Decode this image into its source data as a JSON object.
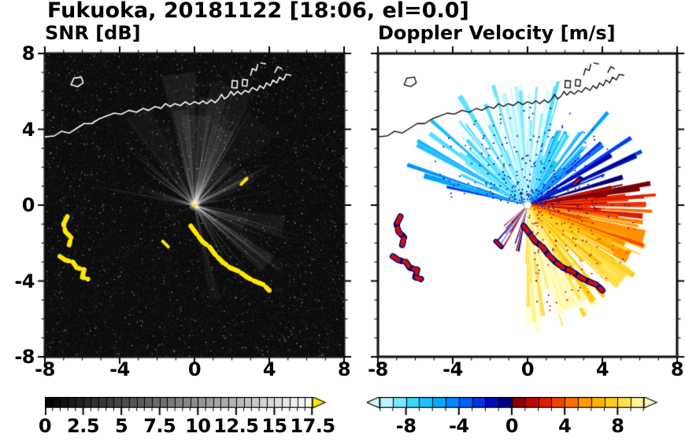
{
  "title": "Fukuoka, 20181122 [18:06, el=0.0]",
  "panels": {
    "snr": {
      "title": "SNR [dB]"
    },
    "doppler": {
      "title": "Doppler Velocity [m/s]"
    }
  },
  "axes": {
    "range": [
      -8,
      8
    ],
    "tick_values": [
      -8,
      -4,
      0,
      4,
      8
    ],
    "xtick_labels": [
      "-8",
      "-4",
      "0",
      "4",
      "8"
    ],
    "ytick_labels": [
      "8",
      "4",
      "0",
      "-4",
      "-8"
    ]
  },
  "colorbars": {
    "snr": {
      "min": 0,
      "max": 17.5,
      "tick_values": [
        0,
        2.5,
        5,
        7.5,
        10,
        12.5,
        15,
        17.5
      ],
      "tick_labels": [
        "0",
        "2.5",
        "5",
        "7.5",
        "10",
        "12.5",
        "15",
        "17.5"
      ],
      "scale": "grayscale-black-to-white",
      "overflow_color": "#ffe800"
    },
    "doppler": {
      "min": -10,
      "max": 10,
      "tick_values": [
        -8,
        -4,
        0,
        4,
        8
      ],
      "tick_labels": [
        "-8",
        "-4",
        "0",
        "4",
        "8"
      ]
    }
  },
  "chart_data": [
    {
      "type": "heatmap",
      "panel": "left",
      "title": "SNR [dB]",
      "x_range": [
        -8,
        8
      ],
      "y_range": [
        -8,
        8
      ],
      "xticks": [
        -8,
        -4,
        0,
        4,
        8
      ],
      "yticks": [
        -8,
        -4,
        0,
        4,
        8
      ],
      "colorbar": {
        "min": 0,
        "max": 17.5,
        "ticks": [
          0,
          2.5,
          5,
          7.5,
          10,
          12.5,
          15,
          17.5
        ],
        "scale": "grayscale",
        "overflow_arrow_color": "#ffe800"
      },
      "content": {
        "background": "dark noise floor near 0 dB",
        "radar_location": [
          0,
          0
        ],
        "radial_streaks": "faint gray rays emanating from the radar at many azimuths, densest toward N-NW and SE",
        "saturated_clutter": "yellow (>17.5 dB) echoes along terrain arcs SW of radar and a broken chain running SE of radar"
      }
    },
    {
      "type": "heatmap",
      "panel": "right",
      "title": "Doppler Velocity [m/s]",
      "x_range": [
        -8,
        8
      ],
      "y_range": [
        -8,
        8
      ],
      "xticks": [
        -8,
        -4,
        0,
        4,
        8
      ],
      "yticks": [
        -8,
        -4,
        0,
        4,
        8
      ],
      "colorbar": {
        "min": -10,
        "max": 10,
        "ticks": [
          -8,
          -4,
          0,
          4,
          8
        ]
      },
      "colormap_stops": [
        [
          -10,
          "#d9ffff"
        ],
        [
          -7.5,
          "#35d8ff"
        ],
        [
          -5,
          "#009bff"
        ],
        [
          -3,
          "#0048ff"
        ],
        [
          -1.2,
          "#0000a8"
        ],
        [
          -0.05,
          "#000070"
        ],
        [
          0.05,
          "#700000"
        ],
        [
          1.2,
          "#b40000"
        ],
        [
          3,
          "#ee2a00"
        ],
        [
          5,
          "#ff8800"
        ],
        [
          7,
          "#ffc400"
        ],
        [
          9,
          "#ffe96a"
        ],
        [
          10,
          "#ffffc8"
        ]
      ],
      "content": {
        "approaching_flow": "blues/cyans in fan toward N and NW of radar",
        "receding_flow": "reds/oranges/yellows in fan toward E and SE of radar",
        "clutter": "dark red / navy echoes at same terrain arcs as SNR panel"
      }
    }
  ],
  "map_overlay": {
    "coastline_lines": [
      [
        [
          -8,
          3.6
        ],
        [
          -7.5,
          3.65
        ],
        [
          -7.1,
          3.9
        ],
        [
          -6.7,
          3.8
        ],
        [
          -6.3,
          4.05
        ],
        [
          -5.9,
          4.3
        ],
        [
          -5.5,
          4.3
        ],
        [
          -5.1,
          4.55
        ],
        [
          -4.7,
          4.7
        ],
        [
          -4.3,
          4.85
        ],
        [
          -3.9,
          4.8
        ],
        [
          -3.5,
          5.0
        ],
        [
          -3.1,
          4.9
        ],
        [
          -2.75,
          5.1
        ],
        [
          -2.45,
          5.0
        ],
        [
          -2.1,
          5.2
        ],
        [
          -1.8,
          5.1
        ],
        [
          -1.55,
          5.35
        ],
        [
          -1.3,
          5.2
        ],
        [
          -1.05,
          5.35
        ],
        [
          -0.75,
          5.25
        ],
        [
          -0.5,
          5.45
        ],
        [
          -0.25,
          5.3
        ],
        [
          0.0,
          5.45
        ],
        [
          0.25,
          5.35
        ],
        [
          0.45,
          5.5
        ],
        [
          0.65,
          5.35
        ],
        [
          0.9,
          5.55
        ],
        [
          1.1,
          5.4
        ],
        [
          1.3,
          5.6
        ],
        [
          1.45,
          5.85
        ],
        [
          1.6,
          5.6
        ],
        [
          1.8,
          5.75
        ],
        [
          1.95,
          6.0
        ],
        [
          2.1,
          5.8
        ],
        [
          2.3,
          6.0
        ],
        [
          2.5,
          5.85
        ],
        [
          2.7,
          6.05
        ],
        [
          2.9,
          5.95
        ],
        [
          3.1,
          6.2
        ],
        [
          3.35,
          6.05
        ],
        [
          3.5,
          6.3
        ],
        [
          3.7,
          6.15
        ],
        [
          3.85,
          6.45
        ],
        [
          4.05,
          6.3
        ],
        [
          4.2,
          6.6
        ],
        [
          4.4,
          6.45
        ],
        [
          4.55,
          6.75
        ],
        [
          4.75,
          6.6
        ],
        [
          4.9,
          6.9
        ],
        [
          5.15,
          6.85
        ]
      ],
      [
        [
          3.0,
          6.85
        ],
        [
          3.1,
          7.2
        ],
        [
          3.3,
          7.1
        ],
        [
          3.38,
          7.42
        ]
      ],
      [
        [
          4.3,
          7.0
        ],
        [
          4.45,
          7.3
        ],
        [
          4.65,
          7.2
        ]
      ],
      [
        [
          3.55,
          7.5
        ],
        [
          3.8,
          7.45
        ]
      ]
    ],
    "coastline_loops": [
      [
        [
          -6.6,
          6.35
        ],
        [
          -6.25,
          6.25
        ],
        [
          -5.95,
          6.45
        ],
        [
          -6.05,
          6.75
        ],
        [
          -6.45,
          6.7
        ]
      ],
      [
        [
          2.0,
          6.2
        ],
        [
          2.28,
          6.18
        ],
        [
          2.3,
          6.55
        ],
        [
          2.02,
          6.57
        ]
      ],
      [
        [
          2.55,
          6.3
        ],
        [
          2.8,
          6.27
        ],
        [
          2.84,
          6.6
        ],
        [
          2.58,
          6.63
        ]
      ]
    ],
    "clutter_polylines": [
      [
        [
          -6.8,
          -0.6
        ],
        [
          -7.0,
          -1.0
        ],
        [
          -6.9,
          -1.4
        ],
        [
          -6.6,
          -1.7
        ],
        [
          -6.7,
          -2.1
        ]
      ],
      [
        [
          -7.2,
          -2.7
        ],
        [
          -6.9,
          -2.9
        ],
        [
          -6.5,
          -3.0
        ],
        [
          -6.3,
          -3.3
        ],
        [
          -5.9,
          -3.4
        ],
        [
          -6.0,
          -3.8
        ],
        [
          -5.7,
          -3.9
        ]
      ],
      [
        [
          -0.2,
          -1.1
        ],
        [
          0.1,
          -1.5
        ],
        [
          0.4,
          -1.9
        ],
        [
          0.8,
          -2.2
        ],
        [
          1.1,
          -2.6
        ],
        [
          1.5,
          -3.0
        ],
        [
          1.9,
          -3.3
        ],
        [
          2.4,
          -3.5
        ],
        [
          2.8,
          -3.8
        ],
        [
          3.2,
          -4.0
        ],
        [
          3.7,
          -4.2
        ],
        [
          4.0,
          -4.5
        ]
      ],
      [
        [
          -1.7,
          -1.9
        ],
        [
          -1.4,
          -2.2
        ]
      ],
      [
        [
          2.5,
          1.1
        ],
        [
          2.8,
          1.4
        ]
      ]
    ]
  }
}
